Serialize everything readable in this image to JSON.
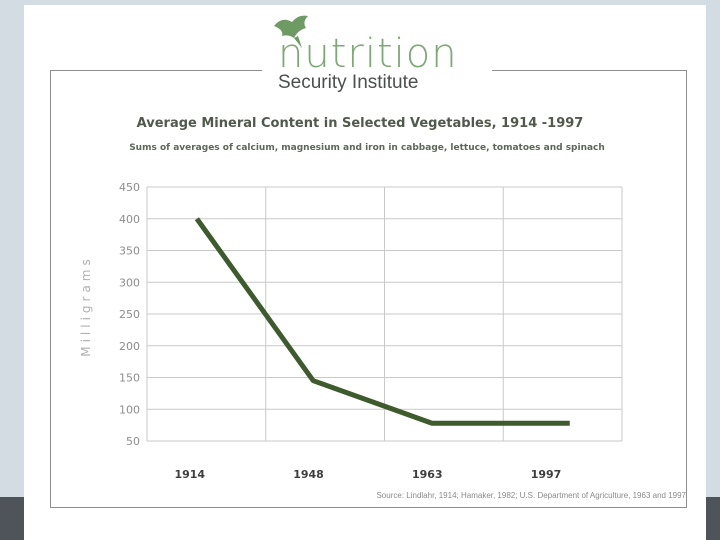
{
  "logo": {
    "word": "nutrition",
    "sub": "Security Institute"
  },
  "chart_data": {
    "type": "line",
    "title": "Average Mineral Content in Selected Vegetables, 1914 -1997",
    "subtitle": "Sums of averages of calcium, magnesium and iron in cabbage, lettuce, tomatoes and spinach",
    "ylabel": "Milligrams",
    "xlabel": "",
    "categories": [
      "1914",
      "1948",
      "1963",
      "1997"
    ],
    "series": [
      {
        "values": [
          400,
          145,
          78,
          78
        ]
      }
    ],
    "yticks": [
      450,
      400,
      350,
      300,
      250,
      200,
      150,
      100,
      50
    ],
    "ylim": [
      50,
      450
    ],
    "grid": true,
    "line_color": "#3d5b2c",
    "grid_color": "#c9c9c9",
    "source": "Source: Lindlahr, 1914; Hamaker, 1982; U.S. Department of Agriculture, 1963 and 1997"
  }
}
